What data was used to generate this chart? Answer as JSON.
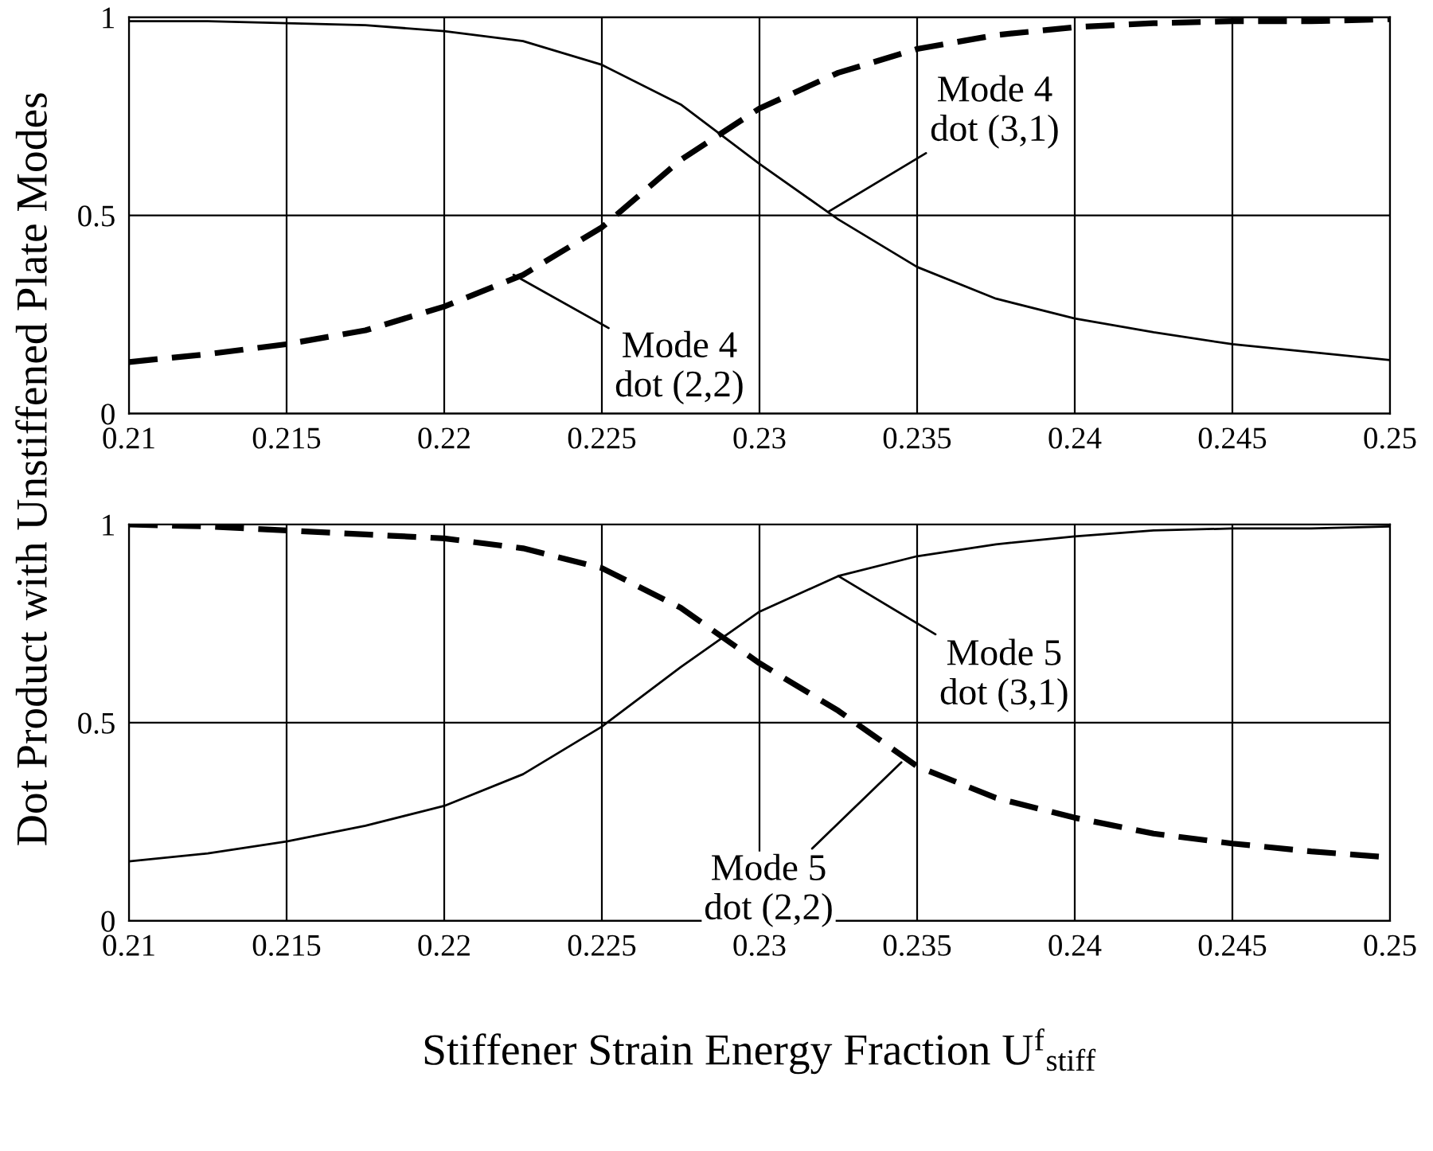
{
  "chart_data": [
    {
      "type": "line",
      "ylabel": "Dot Product with Unstiffened Plate Modes",
      "x": [
        0.21,
        0.2125,
        0.215,
        0.2175,
        0.22,
        0.2225,
        0.225,
        0.2275,
        0.23,
        0.2325,
        0.235,
        0.2375,
        0.24,
        0.2425,
        0.245,
        0.2475,
        0.25
      ],
      "series": [
        {
          "color": "#000000",
          "line_style": "solid",
          "values": [
            0.99,
            0.99,
            0.985,
            0.98,
            0.965,
            0.94,
            0.88,
            0.78,
            0.63,
            0.49,
            0.37,
            0.29,
            0.24,
            0.205,
            0.175,
            0.155,
            0.135
          ]
        },
        {
          "color": "#000000",
          "line_style": "dashed",
          "values": [
            0.13,
            0.15,
            0.175,
            0.21,
            0.27,
            0.35,
            0.47,
            0.64,
            0.77,
            0.86,
            0.92,
            0.955,
            0.975,
            0.985,
            0.99,
            0.99,
            0.995
          ]
        }
      ],
      "annotations": [
        {
          "text": "Mode 4\ndot (3,1)",
          "x": 0.2322,
          "y": 0.51
        },
        {
          "text": "Mode 4\ndot (2,2)",
          "x": 0.2222,
          "y": 0.35
        }
      ],
      "xlim": [
        0.21,
        0.25
      ],
      "xticks": [
        0.21,
        0.215,
        0.22,
        0.225,
        0.23,
        0.235,
        0.24,
        0.245,
        0.25
      ],
      "ylim": [
        0,
        1
      ],
      "yticks": [
        0,
        0.5,
        1
      ],
      "grid": true,
      "legend": false,
      "marker": "none"
    },
    {
      "type": "line",
      "xlabel": "Stiffener Strain Energy Fraction U$^{f}$$_{stiff}$",
      "x": [
        0.21,
        0.2125,
        0.215,
        0.2175,
        0.22,
        0.2225,
        0.225,
        0.2275,
        0.23,
        0.2325,
        0.235,
        0.2375,
        0.24,
        0.2425,
        0.245,
        0.2475,
        0.25
      ],
      "series": [
        {
          "color": "#000000",
          "line_style": "solid",
          "values": [
            0.15,
            0.17,
            0.2,
            0.24,
            0.29,
            0.37,
            0.49,
            0.64,
            0.78,
            0.87,
            0.92,
            0.95,
            0.97,
            0.985,
            0.99,
            0.99,
            0.995
          ]
        },
        {
          "color": "#000000",
          "line_style": "dashed",
          "values": [
            1.0,
            0.995,
            0.985,
            0.975,
            0.965,
            0.94,
            0.89,
            0.79,
            0.65,
            0.53,
            0.39,
            0.31,
            0.26,
            0.22,
            0.195,
            0.175,
            0.16
          ]
        }
      ],
      "annotations": [
        {
          "text": "Mode 5\ndot (3,1)",
          "x": 0.2325,
          "y": 0.87
        },
        {
          "text": "Mode 5\ndot (2,2)",
          "x": 0.2345,
          "y": 0.4
        }
      ],
      "xlim": [
        0.21,
        0.25
      ],
      "xticks": [
        0.21,
        0.215,
        0.22,
        0.225,
        0.23,
        0.235,
        0.24,
        0.245,
        0.25
      ],
      "ylim": [
        0,
        1
      ],
      "yticks": [
        0,
        0.5,
        1
      ],
      "grid": true,
      "legend": false,
      "marker": "none"
    }
  ]
}
